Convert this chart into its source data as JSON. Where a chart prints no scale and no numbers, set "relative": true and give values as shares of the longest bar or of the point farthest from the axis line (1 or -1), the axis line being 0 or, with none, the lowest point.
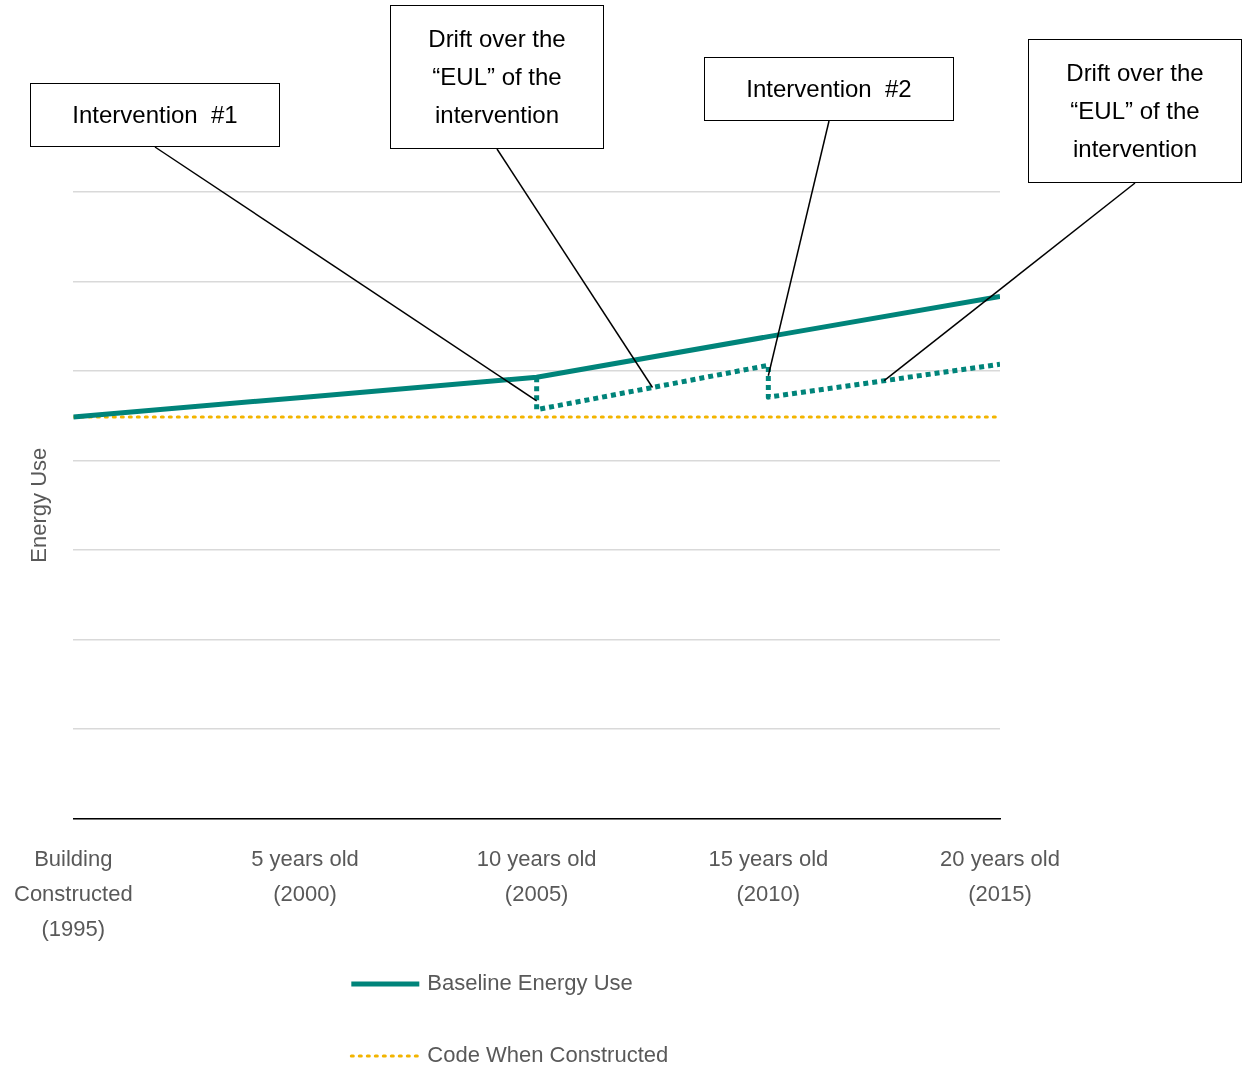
{
  "chart_data": {
    "type": "line",
    "relative": true,
    "ylabel": "Energy Use",
    "categories": [
      "Building Constructed (1995)",
      "5 years old (2000)",
      "10 years old (2005)",
      "15 years old (2010)",
      "20 years old (2015)"
    ],
    "series": [
      {
        "name": "Baseline Energy Use",
        "color": "#00847a",
        "values": [
          0.769,
          0.807,
          0.845,
          0.923,
          1.0
        ]
      },
      {
        "name": "Code When Constructed",
        "color": "#f2b400",
        "line_style": "dotted",
        "values": [
          0.769,
          0.769,
          0.769,
          0.769,
          0.769
        ]
      },
      {
        "color": "#00847a",
        "line_style": "dashed",
        "x": [
          "10 years old (2005)",
          "10 years old (2005)",
          "15 years old (2010)",
          "15 years old (2010)",
          "20 years old (2015)"
        ],
        "values": [
          0.845,
          0.783,
          0.868,
          0.807,
          0.87
        ]
      }
    ],
    "annotations": [
      {
        "text": "Intervention  #1",
        "x": "10 years old (2005)",
        "y": 0.8
      },
      "Drift over the “EUL” of the intervention",
      {
        "text": "Intervention  #2",
        "x": "15 years old (2010)",
        "y": 0.848
      },
      "Drift over the “EUL” of the intervention"
    ],
    "grid": "y",
    "legend": "bottom",
    "marker": "none"
  }
}
